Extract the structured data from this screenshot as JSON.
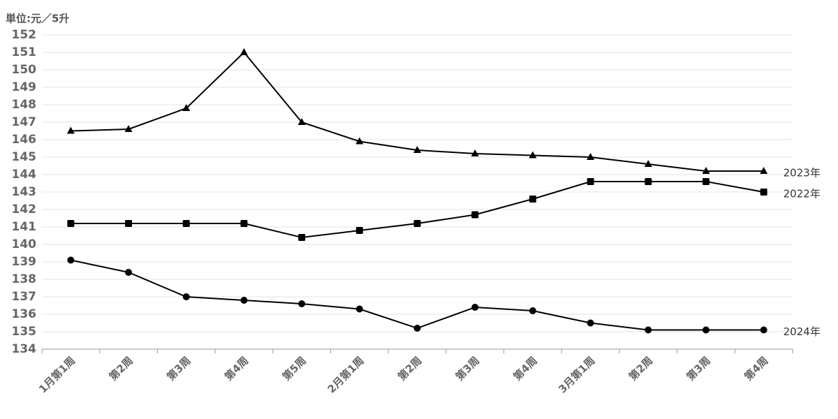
{
  "chart_data": {
    "type": "line",
    "unit_label": "単位:元／5升",
    "categories": [
      "1月第1周",
      "第2周",
      "第3周",
      "第4周",
      "第5周",
      "2月第1周",
      "第2周",
      "第3周",
      "第4周",
      "3月第1周",
      "第2周",
      "第3周",
      "第4周"
    ],
    "series": [
      {
        "name": "2023年",
        "color": "#000000",
        "marker": "triangle",
        "values": [
          146.5,
          146.6,
          147.8,
          151.0,
          147.0,
          145.9,
          145.4,
          145.2,
          145.1,
          145.0,
          144.6,
          144.2,
          144.2
        ]
      },
      {
        "name": "2022年",
        "color": "#000000",
        "marker": "square",
        "values": [
          141.2,
          141.2,
          141.2,
          141.2,
          140.4,
          140.8,
          141.2,
          141.7,
          142.6,
          143.6,
          143.6,
          143.6,
          143.0
        ]
      },
      {
        "name": "2024年",
        "color": "#000000",
        "marker": "circle",
        "values": [
          139.1,
          138.4,
          137.0,
          136.8,
          136.6,
          136.3,
          135.2,
          136.4,
          136.2,
          135.5,
          135.1,
          135.1,
          135.1
        ]
      }
    ],
    "ylim": [
      134,
      152
    ],
    "yticks": [
      134,
      135,
      136,
      137,
      138,
      139,
      140,
      141,
      142,
      143,
      144,
      145,
      146,
      147,
      148,
      149,
      150,
      151,
      152
    ],
    "grid": true
  }
}
